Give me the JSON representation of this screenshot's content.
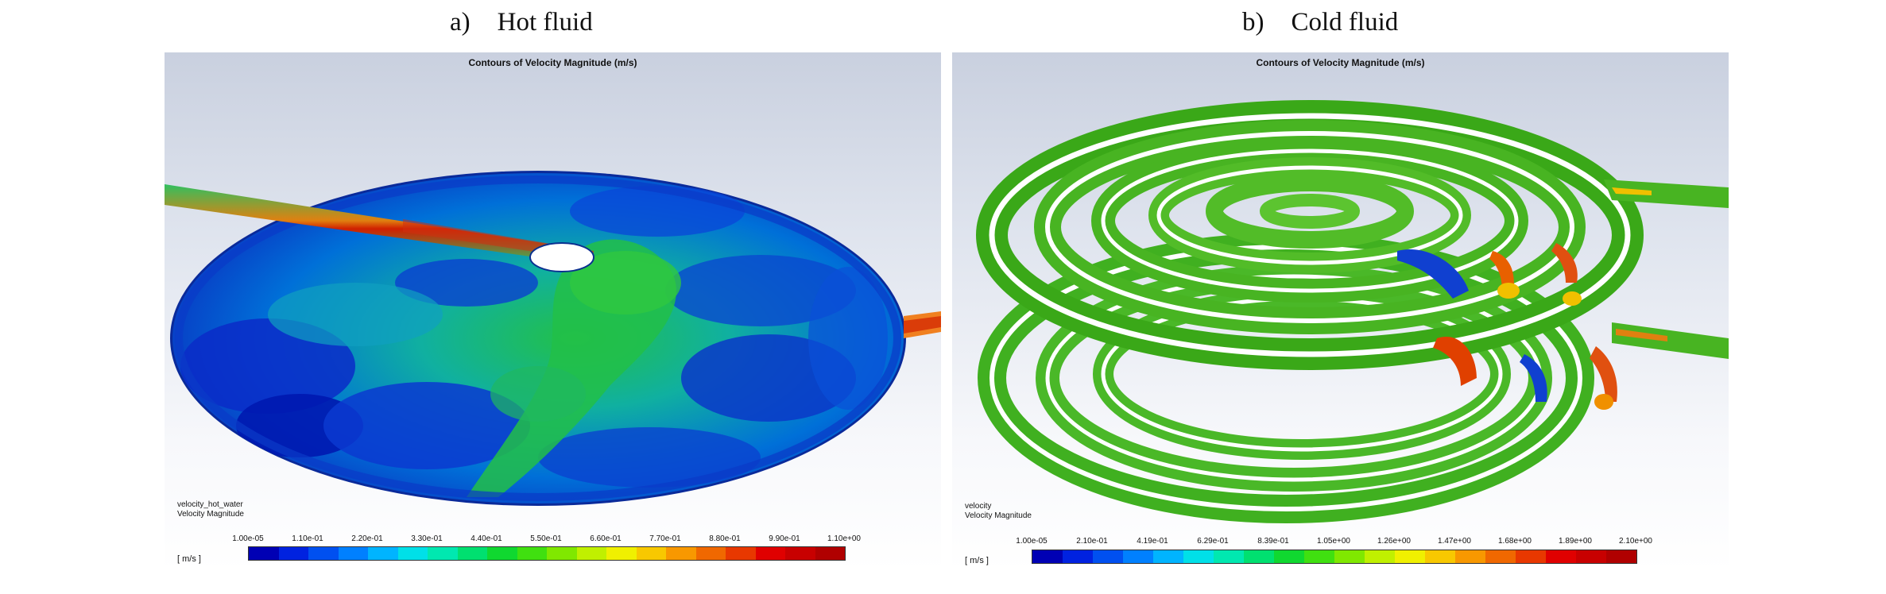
{
  "figure": {
    "left_caption": {
      "label": "a)",
      "title": "Hot fluid"
    },
    "right_caption": {
      "label": "b)",
      "title": "Cold fluid"
    }
  },
  "left_panel": {
    "title": "Contours of Velocity Magnitude (m/s)",
    "variable": "velocity_hot_water",
    "quantity": "Velocity Magnitude",
    "units": "[ m/s ]",
    "ticks": [
      "1.00e-05",
      "1.10e-01",
      "2.20e-01",
      "3.30e-01",
      "4.40e-01",
      "5.50e-01",
      "6.60e-01",
      "7.70e-01",
      "8.80e-01",
      "9.90e-01",
      "1.10e+00"
    ]
  },
  "right_panel": {
    "title": "Contours of Velocity Magnitude (m/s)",
    "variable": "velocity",
    "quantity": "Velocity Magnitude",
    "units": "[ m/s ]",
    "ticks": [
      "1.00e-05",
      "2.10e-01",
      "4.19e-01",
      "6.29e-01",
      "8.39e-01",
      "1.05e+00",
      "1.26e+00",
      "1.47e+00",
      "1.68e+00",
      "1.89e+00",
      "2.10e+00"
    ]
  },
  "colormap": [
    "#0000b4",
    "#0022e0",
    "#0050f0",
    "#0080ff",
    "#00b4ff",
    "#00e0e8",
    "#00e8b0",
    "#00e070",
    "#10d830",
    "#40e010",
    "#80e800",
    "#c0f000",
    "#f0f000",
    "#f8c800",
    "#f89800",
    "#f06800",
    "#e83800",
    "#e00000",
    "#c80000",
    "#b00000"
  ]
}
